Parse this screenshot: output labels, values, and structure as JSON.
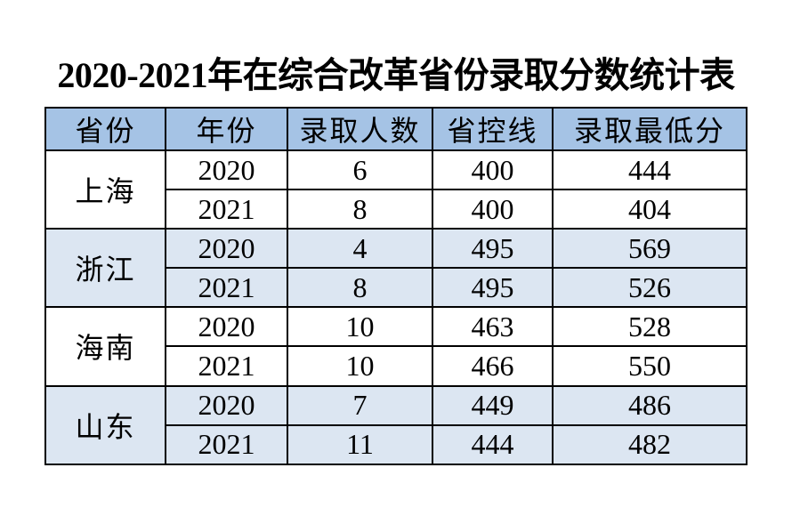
{
  "title": "2020-2021年在综合改革省份录取分数统计表",
  "colors": {
    "header_bg": "#a5c3e5",
    "band_bg": "#dce6f2",
    "border": "#000000",
    "background": "#ffffff",
    "text": "#000000"
  },
  "table": {
    "headers": [
      "省份",
      "年份",
      "录取人数",
      "省控线",
      "录取最低分"
    ],
    "groups": [
      {
        "province": "上海",
        "rows": [
          {
            "year": "2020",
            "admitted": "6",
            "control_line": "400",
            "min_score": "444"
          },
          {
            "year": "2021",
            "admitted": "8",
            "control_line": "400",
            "min_score": "404"
          }
        ]
      },
      {
        "province": "浙江",
        "rows": [
          {
            "year": "2020",
            "admitted": "4",
            "control_line": "495",
            "min_score": "569"
          },
          {
            "year": "2021",
            "admitted": "8",
            "control_line": "495",
            "min_score": "526"
          }
        ]
      },
      {
        "province": "海南",
        "rows": [
          {
            "year": "2020",
            "admitted": "10",
            "control_line": "463",
            "min_score": "528"
          },
          {
            "year": "2021",
            "admitted": "10",
            "control_line": "466",
            "min_score": "550"
          }
        ]
      },
      {
        "province": "山东",
        "rows": [
          {
            "year": "2020",
            "admitted": "7",
            "control_line": "449",
            "min_score": "486"
          },
          {
            "year": "2021",
            "admitted": "11",
            "control_line": "444",
            "min_score": "482"
          }
        ]
      }
    ]
  },
  "chart_data": {
    "type": "table",
    "title": "2020-2021年在综合改革省份录取分数统计表",
    "columns": [
      "省份",
      "年份",
      "录取人数",
      "省控线",
      "录取最低分"
    ],
    "rows": [
      [
        "上海",
        2020,
        6,
        400,
        444
      ],
      [
        "上海",
        2021,
        8,
        400,
        404
      ],
      [
        "浙江",
        2020,
        4,
        495,
        569
      ],
      [
        "浙江",
        2021,
        8,
        495,
        526
      ],
      [
        "海南",
        2020,
        10,
        463,
        528
      ],
      [
        "海南",
        2021,
        10,
        466,
        550
      ],
      [
        "山东",
        2020,
        7,
        449,
        486
      ],
      [
        "山东",
        2021,
        11,
        444,
        482
      ]
    ]
  }
}
